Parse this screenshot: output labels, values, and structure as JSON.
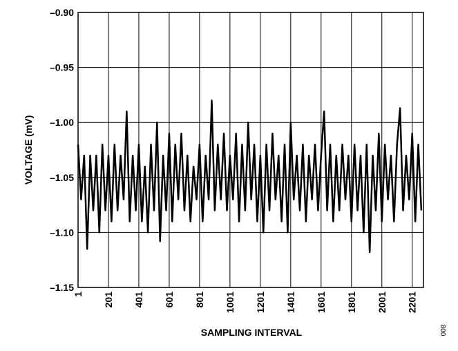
{
  "chart_data": {
    "type": "line",
    "xlabel": "SAMPLING INTERVAL",
    "ylabel": "VOLTAGE (mV)",
    "note": "008",
    "x": [
      1,
      21,
      41,
      61,
      81,
      101,
      121,
      141,
      161,
      181,
      201,
      221,
      241,
      261,
      281,
      301,
      321,
      341,
      361,
      381,
      401,
      421,
      441,
      461,
      481,
      501,
      521,
      541,
      561,
      581,
      601,
      621,
      641,
      661,
      681,
      701,
      721,
      741,
      761,
      781,
      801,
      821,
      841,
      861,
      881,
      901,
      921,
      941,
      961,
      981,
      1001,
      1021,
      1041,
      1061,
      1081,
      1101,
      1121,
      1141,
      1161,
      1181,
      1201,
      1221,
      1241,
      1261,
      1281,
      1301,
      1321,
      1341,
      1361,
      1381,
      1401,
      1421,
      1441,
      1461,
      1481,
      1501,
      1521,
      1541,
      1561,
      1581,
      1601,
      1621,
      1641,
      1661,
      1681,
      1701,
      1721,
      1741,
      1761,
      1781,
      1801,
      1821,
      1841,
      1861,
      1881,
      1901,
      1921,
      1941,
      1961,
      1981,
      2001,
      2021,
      2041,
      2061,
      2081,
      2101,
      2121,
      2141,
      2161,
      2181,
      2201,
      2221,
      2241,
      2261
    ],
    "series": [
      {
        "color": "#000000",
        "values": [
          -1.02,
          -1.07,
          -1.03,
          -1.115,
          -1.03,
          -1.08,
          -1.03,
          -1.1,
          -1.02,
          -1.08,
          -1.03,
          -1.09,
          -1.02,
          -1.08,
          -1.03,
          -1.07,
          -0.99,
          -1.09,
          -1.03,
          -1.08,
          -1.02,
          -1.09,
          -1.04,
          -1.1,
          -1.02,
          -1.08,
          -1.0,
          -1.108,
          -1.03,
          -1.08,
          -1.01,
          -1.09,
          -1.02,
          -1.07,
          -1.01,
          -1.08,
          -1.03,
          -1.09,
          -1.04,
          -1.07,
          -1.02,
          -1.09,
          -1.03,
          -1.07,
          -0.98,
          -1.08,
          -1.02,
          -1.07,
          -1.01,
          -1.08,
          -1.03,
          -1.07,
          -1.01,
          -1.09,
          -1.02,
          -1.08,
          -1.0,
          -1.07,
          -1.02,
          -1.09,
          -1.03,
          -1.1,
          -1.02,
          -1.08,
          -1.01,
          -1.07,
          -1.03,
          -1.09,
          -1.02,
          -1.1,
          -1.0,
          -1.07,
          -1.03,
          -1.08,
          -1.02,
          -1.09,
          -1.03,
          -1.07,
          -1.02,
          -1.08,
          -1.03,
          -0.99,
          -1.08,
          -1.02,
          -1.09,
          -1.03,
          -1.08,
          -1.02,
          -1.07,
          -1.03,
          -1.09,
          -1.02,
          -1.08,
          -1.03,
          -1.1,
          -1.02,
          -1.118,
          -1.03,
          -1.08,
          -1.01,
          -1.09,
          -1.02,
          -1.07,
          -1.03,
          -1.09,
          -1.02,
          -0.987,
          -1.08,
          -1.03,
          -1.07,
          -1.01,
          -1.09,
          -1.02,
          -1.08
        ]
      }
    ],
    "xlim": [
      1,
      2275
    ],
    "ylim": [
      -1.15,
      -0.9
    ],
    "xticks": [
      1,
      201,
      401,
      601,
      801,
      1001,
      1201,
      1401,
      1601,
      1801,
      2001,
      2201
    ],
    "yticks": [
      {
        "value": -1.15,
        "label": "–1.15"
      },
      {
        "value": -1.1,
        "label": "–1.10"
      },
      {
        "value": -1.05,
        "label": "–1.05"
      },
      {
        "value": -1.0,
        "label": "–1.00"
      },
      {
        "value": -0.95,
        "label": "–0.95"
      },
      {
        "value": -0.9,
        "label": "–0.90"
      }
    ],
    "grid": true
  }
}
